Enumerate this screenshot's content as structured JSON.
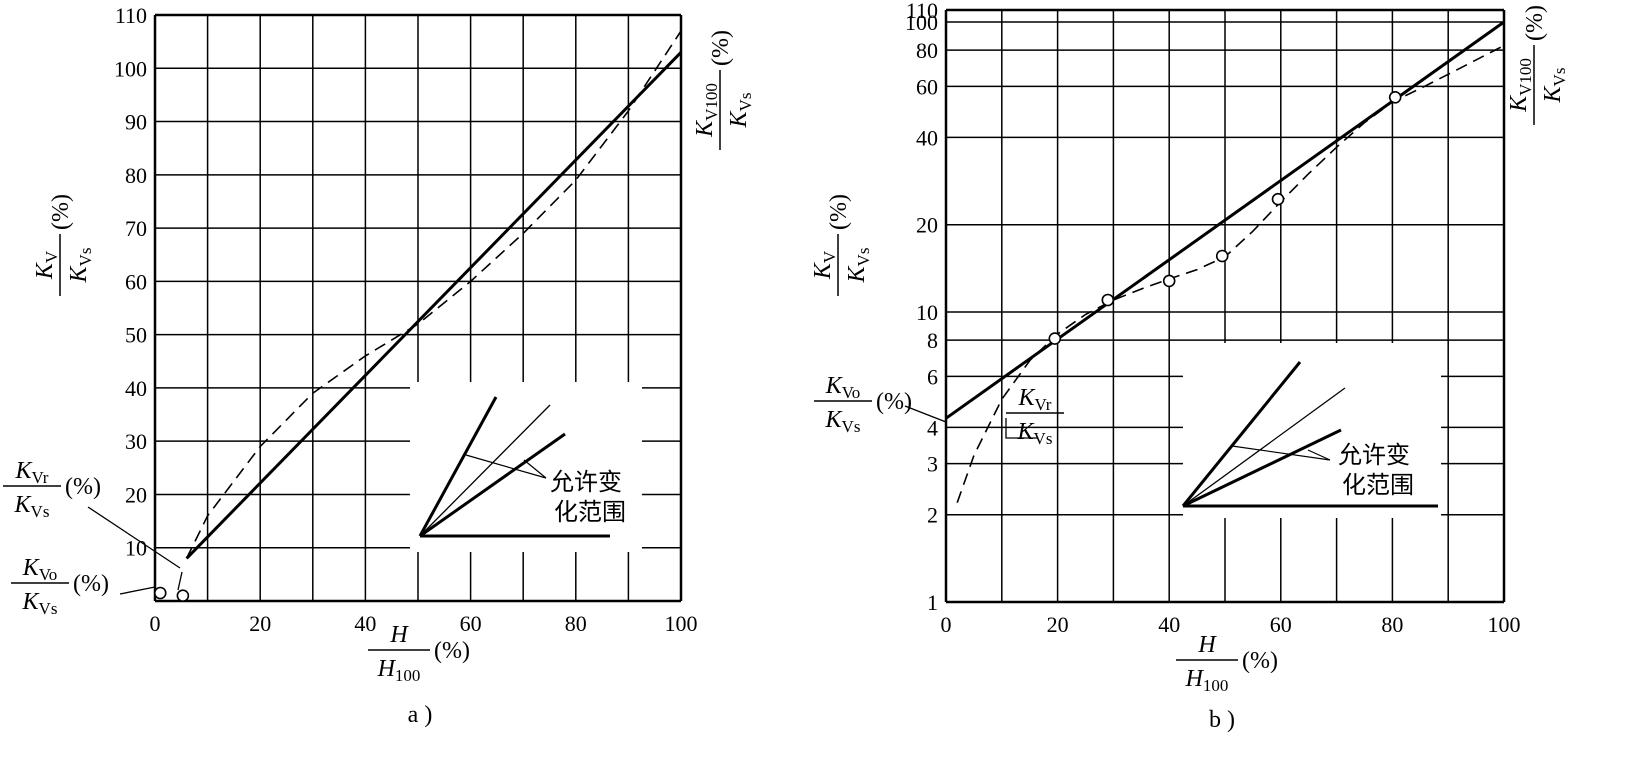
{
  "chart_data": [
    {
      "id": "a",
      "type": "line",
      "panel_label": "a )",
      "xlim": [
        0,
        100
      ],
      "ylim": [
        0,
        110
      ],
      "y_scale": "linear",
      "x_ticks": [
        "0",
        "20",
        "40",
        "60",
        "80",
        "100"
      ],
      "y_ticks": [
        "10",
        "20",
        "30",
        "40",
        "50",
        "60",
        "70",
        "80",
        "90",
        "100",
        "110"
      ],
      "x_label": {
        "numer": "H",
        "denom_main": "H",
        "denom_sub": "100",
        "unit": "(%)"
      },
      "y_label": {
        "numer_main": "K",
        "numer_sub": "V",
        "denom_main": "K",
        "denom_sub": "Vs",
        "unit": "(%)"
      },
      "right_label": {
        "numer_main": "K",
        "numer_sub": "V100",
        "denom_main": "K",
        "denom_sub": "Vs",
        "unit": "(%)"
      },
      "kvr_label": {
        "numer_main": "K",
        "numer_sub": "Vr",
        "denom_main": "K",
        "denom_sub": "Vs",
        "unit": "(%)"
      },
      "kvo_label": {
        "numer_main": "K",
        "numer_sub": "Vo",
        "denom_main": "K",
        "denom_sub": "Vs",
        "unit": "(%)"
      },
      "inset_label": [
        "允许变",
        "化范围"
      ],
      "series": [
        {
          "style": "solid",
          "x": [
            6,
            100
          ],
          "y": [
            8,
            103
          ]
        },
        {
          "style": "dashed",
          "x": [
            6,
            10,
            20,
            30,
            40,
            50,
            60,
            70,
            80,
            90,
            100
          ],
          "y": [
            8,
            16,
            29,
            39,
            46,
            52,
            60,
            69,
            79,
            92,
            107
          ]
        }
      ],
      "markers": [
        {
          "x": 1,
          "y": 1.5
        },
        {
          "x": 5.3,
          "y": 1
        }
      ]
    },
    {
      "id": "b",
      "type": "line",
      "panel_label": "b )",
      "xlim": [
        0,
        100
      ],
      "ylim": [
        1,
        110
      ],
      "y_scale": "log",
      "x_ticks": [
        "0",
        "20",
        "40",
        "60",
        "80",
        "100"
      ],
      "y_ticks": [
        "1",
        "2",
        "3",
        "4",
        "6",
        "8",
        "10",
        "20",
        "40",
        "60",
        "80",
        "100",
        "110"
      ],
      "x_label": {
        "numer": "H",
        "denom_main": "H",
        "denom_sub": "100",
        "unit": "(%)"
      },
      "y_label": {
        "numer_main": "K",
        "numer_sub": "V",
        "denom_main": "K",
        "denom_sub": "Vs",
        "unit": "(%)"
      },
      "right_label": {
        "numer_main": "K",
        "numer_sub": "V100",
        "denom_main": "K",
        "denom_sub": "Vs",
        "unit": "(%)"
      },
      "kvr_label": {
        "numer_main": "K",
        "numer_sub": "Vr",
        "denom_main": "K",
        "denom_sub": "Vs",
        "unit": ""
      },
      "kvo_label": {
        "numer_main": "K",
        "numer_sub": "Vo",
        "denom_main": "K",
        "denom_sub": "Vs",
        "unit": "(%)"
      },
      "inset_label": [
        "允许变",
        "化范围"
      ],
      "series": [
        {
          "style": "solid",
          "x": [
            0,
            100
          ],
          "y": [
            4.3,
            100
          ]
        },
        {
          "style": "dashed",
          "x": [
            2,
            5,
            10,
            15,
            20,
            25,
            30,
            35,
            40,
            45,
            50,
            55,
            60,
            65,
            70,
            75,
            80,
            85,
            90,
            95,
            100
          ],
          "y": [
            2.2,
            3.2,
            5,
            6.8,
            8.4,
            9.8,
            11,
            12,
            13,
            14,
            15.5,
            19,
            24,
            30,
            37,
            45,
            53,
            59,
            66,
            74,
            83
          ]
        }
      ],
      "markers": [
        {
          "x": 19.5,
          "y": 8.1
        },
        {
          "x": 29,
          "y": 11
        },
        {
          "x": 40,
          "y": 12.8
        },
        {
          "x": 49.5,
          "y": 15.6
        },
        {
          "x": 59.5,
          "y": 24.5
        },
        {
          "x": 80.5,
          "y": 55
        }
      ]
    }
  ]
}
